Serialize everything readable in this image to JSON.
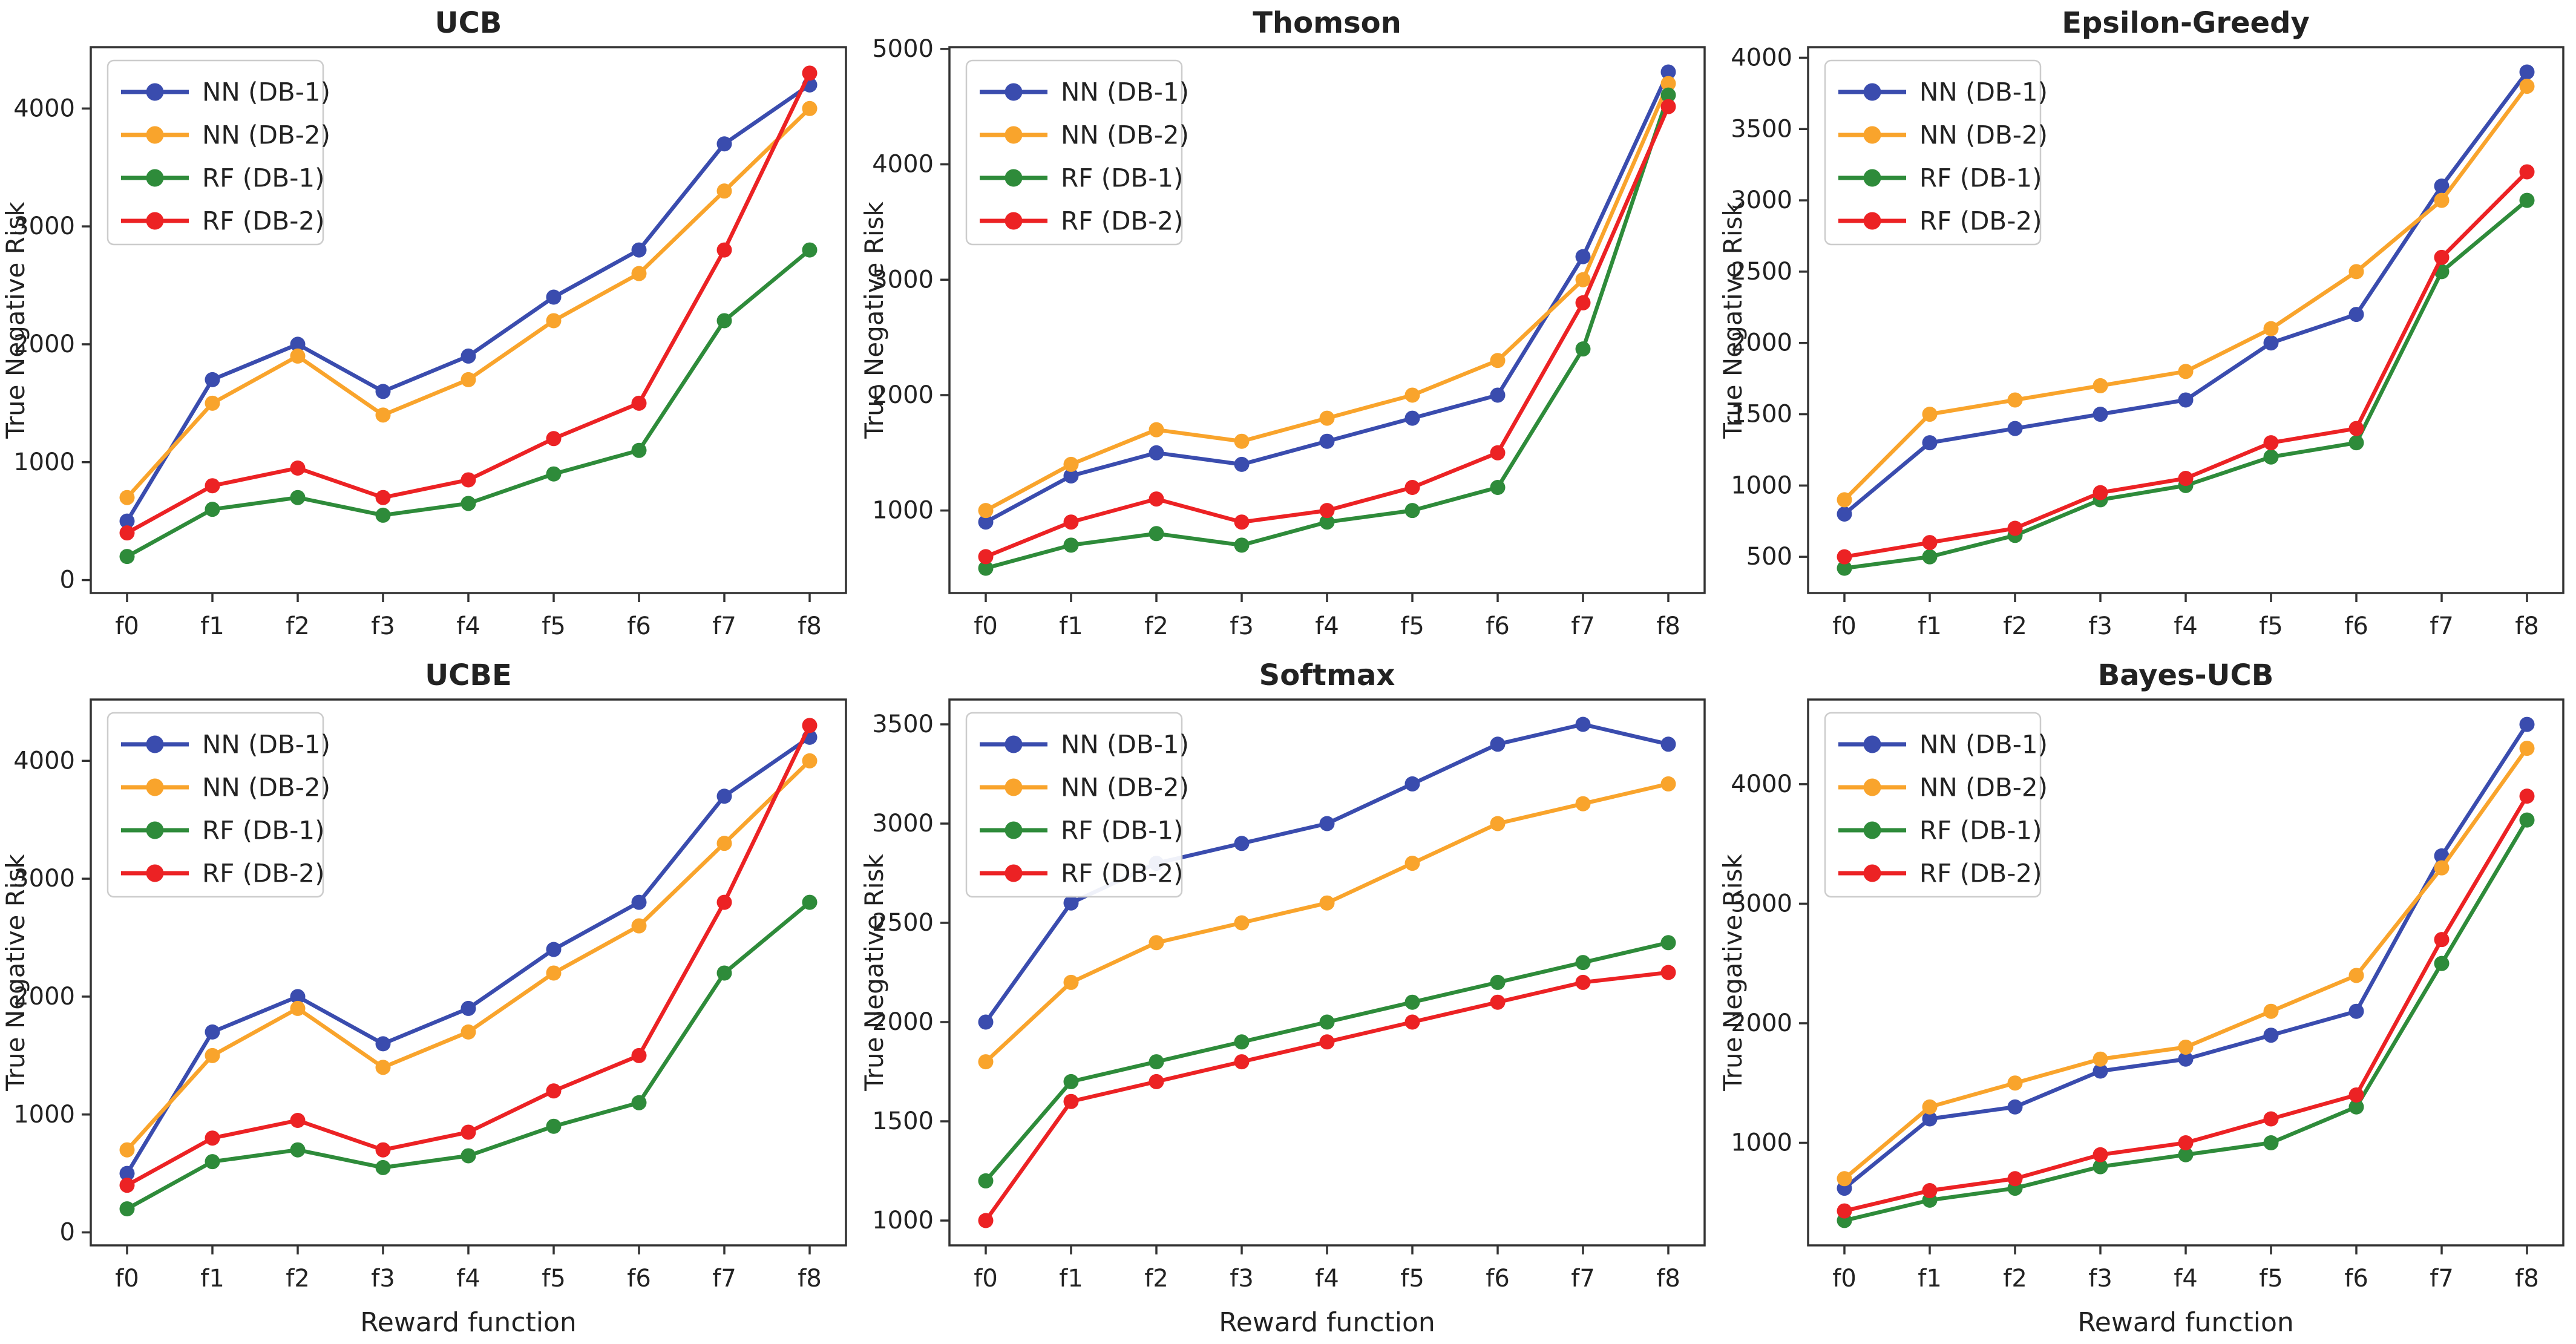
{
  "figure": {
    "ylabel": "True Negative Risk",
    "xlabel": "Reward function",
    "categories": [
      "f0",
      "f1",
      "f2",
      "f3",
      "f4",
      "f5",
      "f6",
      "f7",
      "f8"
    ],
    "legend": {
      "position": "upper-left",
      "entries": [
        "NN (DB-1)",
        "NN (DB-2)",
        "RF (DB-1)",
        "RF (DB-2)"
      ]
    },
    "colors": {
      "NN (DB-1)": "#3a4cae",
      "NN (DB-2)": "#f9a42c",
      "RF (DB-1)": "#2e8b3a",
      "RF (DB-2)": "#ec2224"
    },
    "grid": false,
    "marker": "circle"
  },
  "chart_data": [
    {
      "type": "line",
      "title": "UCB",
      "show_xlabel": false,
      "yticks": [
        0,
        1000,
        2000,
        3000,
        4000
      ],
      "ylim": [
        -110,
        4520
      ],
      "series": [
        {
          "name": "NN (DB-1)",
          "values": [
            500,
            1700,
            2000,
            1600,
            1900,
            2400,
            2800,
            3700,
            4200
          ]
        },
        {
          "name": "NN (DB-2)",
          "values": [
            700,
            1500,
            1900,
            1400,
            1700,
            2200,
            2600,
            3300,
            4000
          ]
        },
        {
          "name": "RF (DB-1)",
          "values": [
            200,
            600,
            700,
            550,
            650,
            900,
            1100,
            2200,
            2800
          ]
        },
        {
          "name": "RF (DB-2)",
          "values": [
            400,
            800,
            950,
            700,
            850,
            1200,
            1500,
            2800,
            4300
          ]
        }
      ]
    },
    {
      "type": "line",
      "title": "Thomson",
      "show_xlabel": false,
      "yticks": [
        1000,
        2000,
        3000,
        4000,
        5000
      ],
      "ylim": [
        285,
        5015
      ],
      "series": [
        {
          "name": "NN (DB-1)",
          "values": [
            900,
            1300,
            1500,
            1400,
            1600,
            1800,
            2000,
            3200,
            4800
          ]
        },
        {
          "name": "NN (DB-2)",
          "values": [
            1000,
            1400,
            1700,
            1600,
            1800,
            2000,
            2300,
            3000,
            4700
          ]
        },
        {
          "name": "RF (DB-1)",
          "values": [
            500,
            700,
            800,
            700,
            900,
            1000,
            1200,
            2400,
            4600
          ]
        },
        {
          "name": "RF (DB-2)",
          "values": [
            600,
            900,
            1100,
            900,
            1000,
            1200,
            1500,
            2800,
            4500
          ]
        }
      ]
    },
    {
      "type": "line",
      "title": "Epsilon-Greedy",
      "show_xlabel": false,
      "yticks": [
        500,
        1000,
        1500,
        2000,
        2500,
        3000,
        3500,
        4000
      ],
      "ylim": [
        246,
        4074
      ],
      "series": [
        {
          "name": "NN (DB-1)",
          "values": [
            800,
            1300,
            1400,
            1500,
            1600,
            2000,
            2200,
            3100,
            3900
          ]
        },
        {
          "name": "NN (DB-2)",
          "values": [
            900,
            1500,
            1600,
            1700,
            1800,
            2100,
            2500,
            3000,
            3800
          ]
        },
        {
          "name": "RF (DB-1)",
          "values": [
            420,
            500,
            650,
            900,
            1000,
            1200,
            1300,
            2500,
            3000
          ]
        },
        {
          "name": "RF (DB-2)",
          "values": [
            500,
            600,
            700,
            950,
            1050,
            1300,
            1400,
            2600,
            3200
          ]
        }
      ]
    },
    {
      "type": "line",
      "title": "UCBE",
      "show_xlabel": true,
      "yticks": [
        0,
        1000,
        2000,
        3000,
        4000
      ],
      "ylim": [
        -110,
        4520
      ],
      "series": [
        {
          "name": "NN (DB-1)",
          "values": [
            500,
            1700,
            2000,
            1600,
            1900,
            2400,
            2800,
            3700,
            4200
          ]
        },
        {
          "name": "NN (DB-2)",
          "values": [
            700,
            1500,
            1900,
            1400,
            1700,
            2200,
            2600,
            3300,
            4000
          ]
        },
        {
          "name": "RF (DB-1)",
          "values": [
            200,
            600,
            700,
            550,
            650,
            900,
            1100,
            2200,
            2800
          ]
        },
        {
          "name": "RF (DB-2)",
          "values": [
            400,
            800,
            950,
            700,
            850,
            1200,
            1500,
            2800,
            4300
          ]
        }
      ]
    },
    {
      "type": "line",
      "title": "Softmax",
      "show_xlabel": true,
      "yticks": [
        1000,
        1500,
        2000,
        2500,
        3000,
        3500
      ],
      "ylim": [
        875,
        3625
      ],
      "series": [
        {
          "name": "NN (DB-1)",
          "values": [
            2000,
            2600,
            2800,
            2900,
            3000,
            3200,
            3400,
            3500,
            3400
          ]
        },
        {
          "name": "NN (DB-2)",
          "values": [
            1800,
            2200,
            2400,
            2500,
            2600,
            2800,
            3000,
            3100,
            3200
          ]
        },
        {
          "name": "RF (DB-1)",
          "values": [
            1200,
            1700,
            1800,
            1900,
            2000,
            2100,
            2200,
            2300,
            2400
          ]
        },
        {
          "name": "RF (DB-2)",
          "values": [
            1000,
            1600,
            1700,
            1800,
            1900,
            2000,
            2100,
            2200,
            2250
          ]
        }
      ]
    },
    {
      "type": "line",
      "title": "Bayes-UCB",
      "show_xlabel": true,
      "yticks": [
        1000,
        2000,
        3000,
        4000
      ],
      "ylim": [
        142,
        4708
      ],
      "series": [
        {
          "name": "NN (DB-1)",
          "values": [
            620,
            1200,
            1300,
            1600,
            1700,
            1900,
            2100,
            3400,
            4500
          ]
        },
        {
          "name": "NN (DB-2)",
          "values": [
            700,
            1300,
            1500,
            1700,
            1800,
            2100,
            2400,
            3300,
            4300
          ]
        },
        {
          "name": "RF (DB-1)",
          "values": [
            350,
            520,
            620,
            800,
            900,
            1000,
            1300,
            2500,
            3700
          ]
        },
        {
          "name": "RF (DB-2)",
          "values": [
            430,
            600,
            700,
            900,
            1000,
            1200,
            1400,
            2700,
            3900
          ]
        }
      ]
    }
  ]
}
